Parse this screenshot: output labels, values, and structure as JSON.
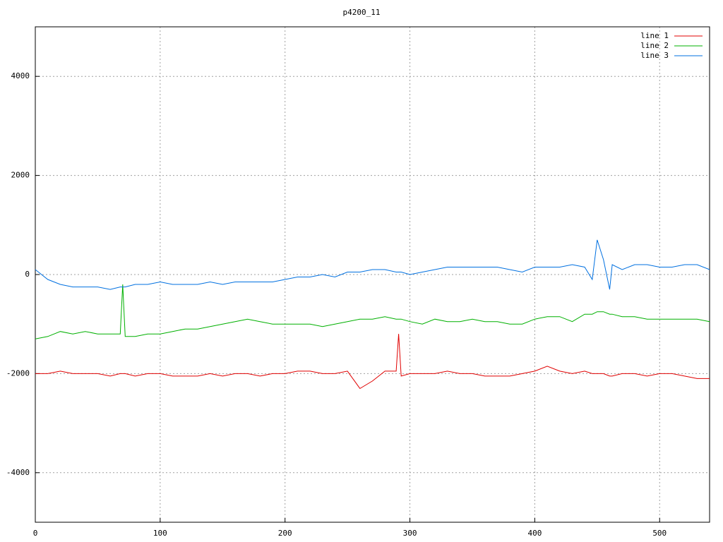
{
  "chart_data": {
    "type": "line",
    "title": "p4200_11",
    "x": [
      0,
      10,
      20,
      30,
      40,
      50,
      60,
      68,
      70,
      72,
      80,
      90,
      100,
      110,
      120,
      130,
      140,
      150,
      160,
      170,
      180,
      190,
      200,
      210,
      220,
      230,
      240,
      250,
      260,
      270,
      280,
      289,
      291,
      293,
      300,
      310,
      320,
      330,
      340,
      350,
      360,
      370,
      380,
      390,
      400,
      410,
      420,
      430,
      440,
      446,
      450,
      455,
      460,
      462,
      470,
      480,
      490,
      500,
      510,
      520,
      530,
      540
    ],
    "series": [
      {
        "name": "line 1",
        "color": "#e00000",
        "values": [
          -2000,
          -2000,
          -1950,
          -2000,
          -2000,
          -2000,
          -2050,
          -2000,
          -2000,
          -2000,
          -2050,
          -2000,
          -2000,
          -2050,
          -2050,
          -2050,
          -2000,
          -2050,
          -2000,
          -2000,
          -2050,
          -2000,
          -2000,
          -1950,
          -1950,
          -2000,
          -2000,
          -1950,
          -2300,
          -2150,
          -1950,
          -1950,
          -1200,
          -2050,
          -2000,
          -2000,
          -2000,
          -1950,
          -2000,
          -2000,
          -2050,
          -2050,
          -2050,
          -2000,
          -1950,
          -1850,
          -1950,
          -2000,
          -1950,
          -2000,
          -2000,
          -2000,
          -2050,
          -2050,
          -2000,
          -2000,
          -2050,
          -2000,
          -2000,
          -2050,
          -2100,
          -2100
        ]
      },
      {
        "name": "line 2",
        "color": "#00b000",
        "values": [
          -1300,
          -1250,
          -1150,
          -1200,
          -1150,
          -1200,
          -1200,
          -1200,
          -200,
          -1250,
          -1250,
          -1200,
          -1200,
          -1150,
          -1100,
          -1100,
          -1050,
          -1000,
          -950,
          -900,
          -950,
          -1000,
          -1000,
          -1000,
          -1000,
          -1050,
          -1000,
          -950,
          -900,
          -900,
          -850,
          -900,
          -900,
          -900,
          -950,
          -1000,
          -900,
          -950,
          -950,
          -900,
          -950,
          -950,
          -1000,
          -1000,
          -900,
          -850,
          -850,
          -950,
          -800,
          -800,
          -750,
          -750,
          -800,
          -800,
          -850,
          -850,
          -900,
          -900,
          -900,
          -900,
          -900,
          -950
        ]
      },
      {
        "name": "line 3",
        "color": "#0070e0",
        "values": [
          100,
          -100,
          -200,
          -250,
          -250,
          -250,
          -300,
          -250,
          -250,
          -250,
          -200,
          -200,
          -150,
          -200,
          -200,
          -200,
          -150,
          -200,
          -150,
          -150,
          -150,
          -150,
          -100,
          -50,
          -50,
          0,
          -50,
          50,
          50,
          100,
          100,
          50,
          50,
          50,
          0,
          50,
          100,
          150,
          150,
          150,
          150,
          150,
          100,
          50,
          150,
          150,
          150,
          200,
          150,
          -100,
          700,
          300,
          -300,
          200,
          100,
          200,
          200,
          150,
          150,
          200,
          200,
          100
        ]
      }
    ],
    "xlim": [
      0,
      540
    ],
    "ylim": [
      -5000,
      5000
    ],
    "xticks": [
      0,
      100,
      200,
      300,
      400,
      500
    ],
    "yticks": [
      -4000,
      -2000,
      0,
      2000,
      4000
    ],
    "grid": true,
    "legend": "top-right"
  }
}
